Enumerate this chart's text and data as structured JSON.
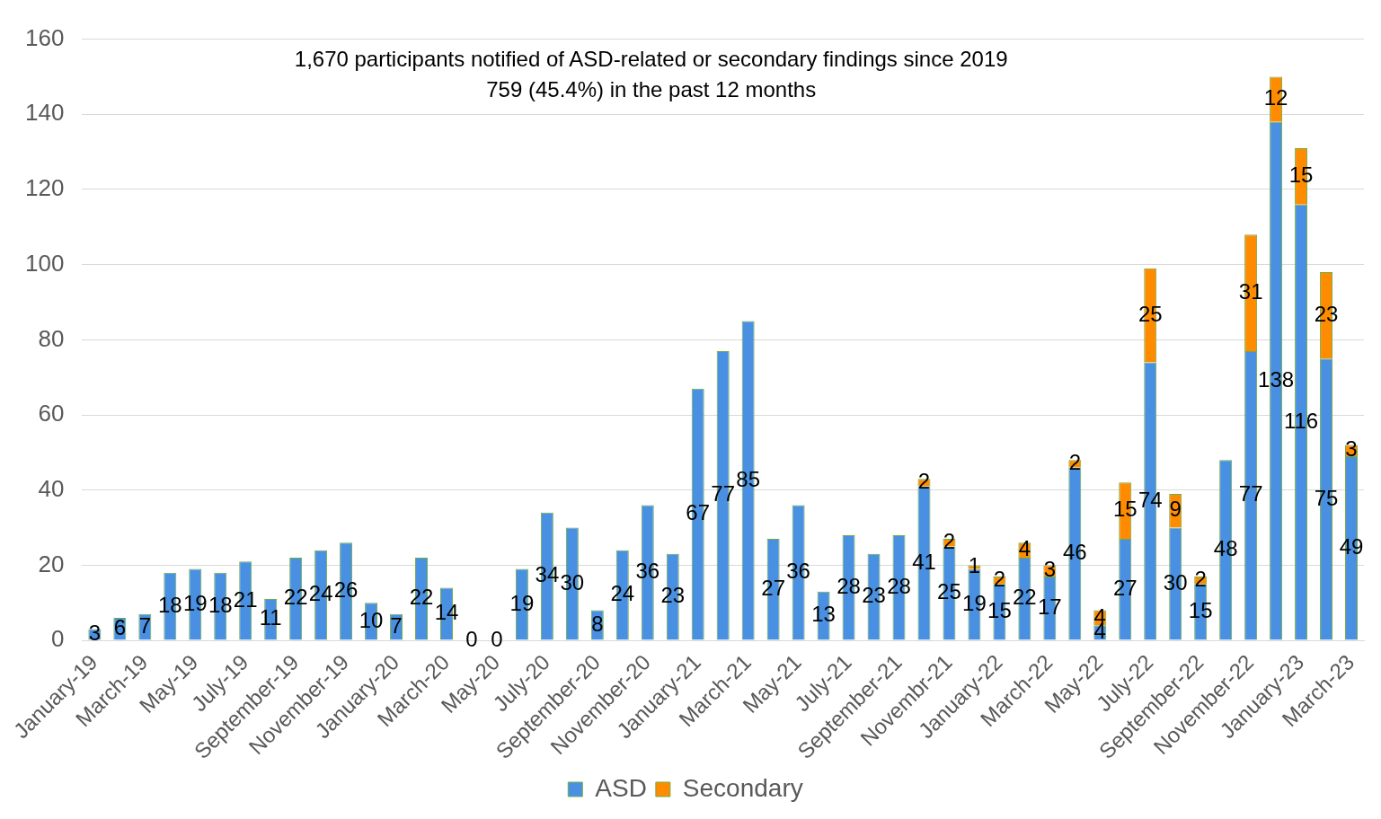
{
  "chart_data": {
    "type": "bar",
    "stacked": true,
    "title": "1,670 participants notified of ASD-related or secondary findings since 2019",
    "subtitle": "759 (45.4%) in the past 12 months",
    "categories": [
      "January-19",
      null,
      "March-19",
      null,
      "May-19",
      null,
      "July-19",
      null,
      "September-19",
      null,
      "November-19",
      null,
      "January-20",
      null,
      "March-20",
      null,
      "May-20",
      null,
      "July-20",
      null,
      "September-20",
      null,
      "November-20",
      null,
      "January-21",
      null,
      "March-21",
      null,
      "May-21",
      null,
      "July-21",
      null,
      "September-21",
      null,
      "Novembr-21",
      null,
      "January-22",
      null,
      "March-22",
      null,
      "May-22",
      null,
      "July-22",
      null,
      "September-22",
      null,
      "November-22",
      null,
      "January-23",
      null,
      "March-23"
    ],
    "series": [
      {
        "name": "ASD",
        "color": "#4a90e2",
        "values": [
          3,
          6,
          7,
          18,
          19,
          18,
          21,
          11,
          22,
          24,
          26,
          10,
          7,
          22,
          14,
          0,
          0,
          19,
          34,
          30,
          8,
          24,
          36,
          23,
          67,
          77,
          85,
          27,
          36,
          13,
          28,
          23,
          28,
          41,
          25,
          19,
          15,
          22,
          17,
          46,
          4,
          27,
          74,
          30,
          15,
          48,
          77,
          138,
          116,
          75,
          49
        ]
      },
      {
        "name": "Secondary",
        "color": "#ff8c00",
        "values": [
          null,
          null,
          null,
          null,
          null,
          null,
          null,
          null,
          null,
          null,
          null,
          null,
          null,
          null,
          null,
          null,
          null,
          null,
          null,
          null,
          null,
          null,
          null,
          null,
          null,
          null,
          null,
          null,
          null,
          null,
          null,
          null,
          null,
          2,
          2,
          1,
          2,
          4,
          3,
          2,
          4,
          15,
          25,
          9,
          2,
          null,
          31,
          12,
          15,
          23,
          3
        ]
      }
    ],
    "ylim": [
      0,
      160
    ],
    "yticks": [
      0,
      20,
      40,
      60,
      80,
      100,
      120,
      140,
      160
    ],
    "grid": "y",
    "legend": "bottom",
    "data_labels": true
  }
}
